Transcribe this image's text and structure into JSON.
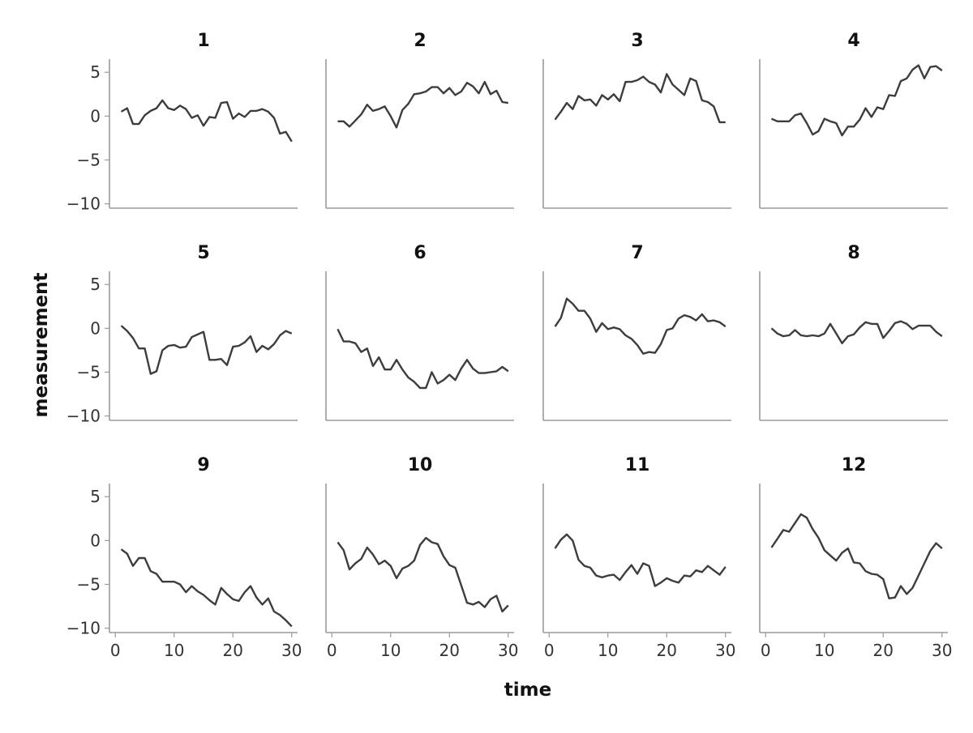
{
  "chart_data": {
    "type": "line",
    "layout": "small-multiples 3x4",
    "xlabel": "time",
    "ylabel": "measurement",
    "xlim": [
      -1,
      31
    ],
    "ylim": [
      -10.5,
      6.5
    ],
    "xticks": [
      "0",
      "10",
      "20",
      "30"
    ],
    "yticks": [
      "5",
      "0",
      "−5",
      "−10"
    ],
    "grid": false,
    "legend": "none",
    "line_color": "#3d3d3d",
    "axis_color": "#9a9a9a",
    "x": [
      1,
      2,
      3,
      4,
      5,
      6,
      7,
      8,
      9,
      10,
      11,
      12,
      13,
      14,
      15,
      16,
      17,
      18,
      19,
      20,
      21,
      22,
      23,
      24,
      25,
      26,
      27,
      28,
      29,
      30
    ],
    "panels": [
      {
        "title": "1",
        "values": [
          0.5,
          0.9,
          -0.9,
          -0.9,
          0.1,
          0.6,
          0.9,
          1.8,
          0.9,
          0.7,
          1.2,
          0.8,
          -0.2,
          0.1,
          -1.1,
          -0.1,
          -0.2,
          1.5,
          1.6,
          -0.3,
          0.3,
          -0.1,
          0.6,
          0.6,
          0.8,
          0.5,
          -0.2,
          -2.0,
          -1.8,
          -2.9
        ]
      },
      {
        "title": "2",
        "values": [
          -0.6,
          -0.6,
          -1.2,
          -0.5,
          0.2,
          1.3,
          0.6,
          0.8,
          1.1,
          0.0,
          -1.3,
          0.7,
          1.4,
          2.5,
          2.6,
          2.8,
          3.3,
          3.3,
          2.6,
          3.2,
          2.4,
          2.8,
          3.8,
          3.4,
          2.6,
          3.9,
          2.5,
          2.9,
          1.6,
          1.5
        ]
      },
      {
        "title": "3",
        "values": [
          -0.4,
          0.5,
          1.5,
          0.8,
          2.3,
          1.8,
          1.9,
          1.2,
          2.4,
          1.9,
          2.5,
          1.7,
          3.9,
          3.9,
          4.1,
          4.5,
          3.9,
          3.6,
          2.7,
          4.8,
          3.6,
          3.0,
          2.4,
          4.3,
          4.0,
          1.8,
          1.6,
          1.1,
          -0.7,
          -0.7
        ]
      },
      {
        "title": "4",
        "values": [
          -0.3,
          -0.6,
          -0.6,
          -0.6,
          0.1,
          0.3,
          -0.8,
          -2.1,
          -1.7,
          -0.3,
          -0.6,
          -0.8,
          -2.2,
          -1.2,
          -1.2,
          -0.4,
          0.9,
          -0.1,
          1.0,
          0.8,
          2.4,
          2.3,
          4.0,
          4.3,
          5.3,
          5.8,
          4.3,
          5.6,
          5.7,
          5.2
        ]
      },
      {
        "title": "5",
        "values": [
          0.3,
          -0.3,
          -1.1,
          -2.3,
          -2.3,
          -5.2,
          -4.9,
          -2.5,
          -2.0,
          -1.9,
          -2.2,
          -2.1,
          -1.0,
          -0.7,
          -0.4,
          -3.6,
          -3.6,
          -3.5,
          -4.2,
          -2.1,
          -2.0,
          -1.6,
          -0.9,
          -2.7,
          -2.0,
          -2.4,
          -1.8,
          -0.8,
          -0.3,
          -0.6
        ]
      },
      {
        "title": "6",
        "values": [
          -0.1,
          -1.5,
          -1.5,
          -1.7,
          -2.7,
          -2.3,
          -4.3,
          -3.3,
          -4.7,
          -4.7,
          -3.6,
          -4.7,
          -5.6,
          -6.1,
          -6.8,
          -6.8,
          -5.0,
          -6.3,
          -5.9,
          -5.3,
          -5.9,
          -4.6,
          -3.6,
          -4.6,
          -5.1,
          -5.1,
          -5.0,
          -4.9,
          -4.4,
          -4.9
        ]
      },
      {
        "title": "7",
        "values": [
          0.2,
          1.2,
          3.4,
          2.8,
          2.0,
          2.0,
          1.1,
          -0.4,
          0.6,
          -0.1,
          0.1,
          -0.1,
          -0.8,
          -1.2,
          -1.9,
          -2.9,
          -2.7,
          -2.8,
          -1.8,
          -0.2,
          0.0,
          1.1,
          1.5,
          1.3,
          0.9,
          1.6,
          0.8,
          0.9,
          0.7,
          0.2
        ]
      },
      {
        "title": "8",
        "values": [
          0.0,
          -0.6,
          -0.9,
          -0.8,
          -0.2,
          -0.8,
          -0.9,
          -0.8,
          -0.9,
          -0.6,
          0.5,
          -0.6,
          -1.7,
          -0.9,
          -0.7,
          0.1,
          0.7,
          0.5,
          0.5,
          -1.1,
          -0.3,
          0.6,
          0.8,
          0.5,
          -0.1,
          0.3,
          0.3,
          0.3,
          -0.4,
          -0.9
        ]
      },
      {
        "title": "9",
        "values": [
          -1.0,
          -1.5,
          -2.9,
          -2.0,
          -2.0,
          -3.5,
          -3.8,
          -4.7,
          -4.7,
          -4.7,
          -5.0,
          -5.9,
          -5.2,
          -5.8,
          -6.2,
          -6.8,
          -7.3,
          -5.4,
          -6.1,
          -6.7,
          -6.9,
          -5.9,
          -5.2,
          -6.5,
          -7.3,
          -6.6,
          -8.1,
          -8.5,
          -9.1,
          -9.8
        ]
      },
      {
        "title": "10",
        "values": [
          -0.2,
          -1.1,
          -3.3,
          -2.6,
          -2.1,
          -0.8,
          -1.6,
          -2.7,
          -2.3,
          -2.9,
          -4.3,
          -3.2,
          -2.9,
          -2.3,
          -0.5,
          0.3,
          -0.2,
          -0.4,
          -1.8,
          -2.8,
          -3.1,
          -5.1,
          -7.1,
          -7.3,
          -7.0,
          -7.6,
          -6.7,
          -6.3,
          -8.1,
          -7.4
        ]
      },
      {
        "title": "11",
        "values": [
          -0.9,
          0.1,
          0.7,
          0.0,
          -2.2,
          -2.9,
          -3.1,
          -4.0,
          -4.2,
          -4.0,
          -3.9,
          -4.5,
          -3.6,
          -2.8,
          -3.8,
          -2.6,
          -2.9,
          -5.2,
          -4.8,
          -4.3,
          -4.6,
          -4.8,
          -4.0,
          -4.1,
          -3.4,
          -3.6,
          -2.9,
          -3.4,
          -3.9,
          -3.0
        ]
      },
      {
        "title": "12",
        "values": [
          -0.8,
          0.2,
          1.2,
          1.0,
          2.0,
          3.0,
          2.6,
          1.3,
          0.3,
          -1.1,
          -1.7,
          -2.3,
          -1.4,
          -0.9,
          -2.5,
          -2.6,
          -3.5,
          -3.8,
          -3.9,
          -4.4,
          -6.6,
          -6.5,
          -5.2,
          -6.1,
          -5.4,
          -4.0,
          -2.6,
          -1.2,
          -0.3,
          -0.9
        ]
      }
    ]
  }
}
